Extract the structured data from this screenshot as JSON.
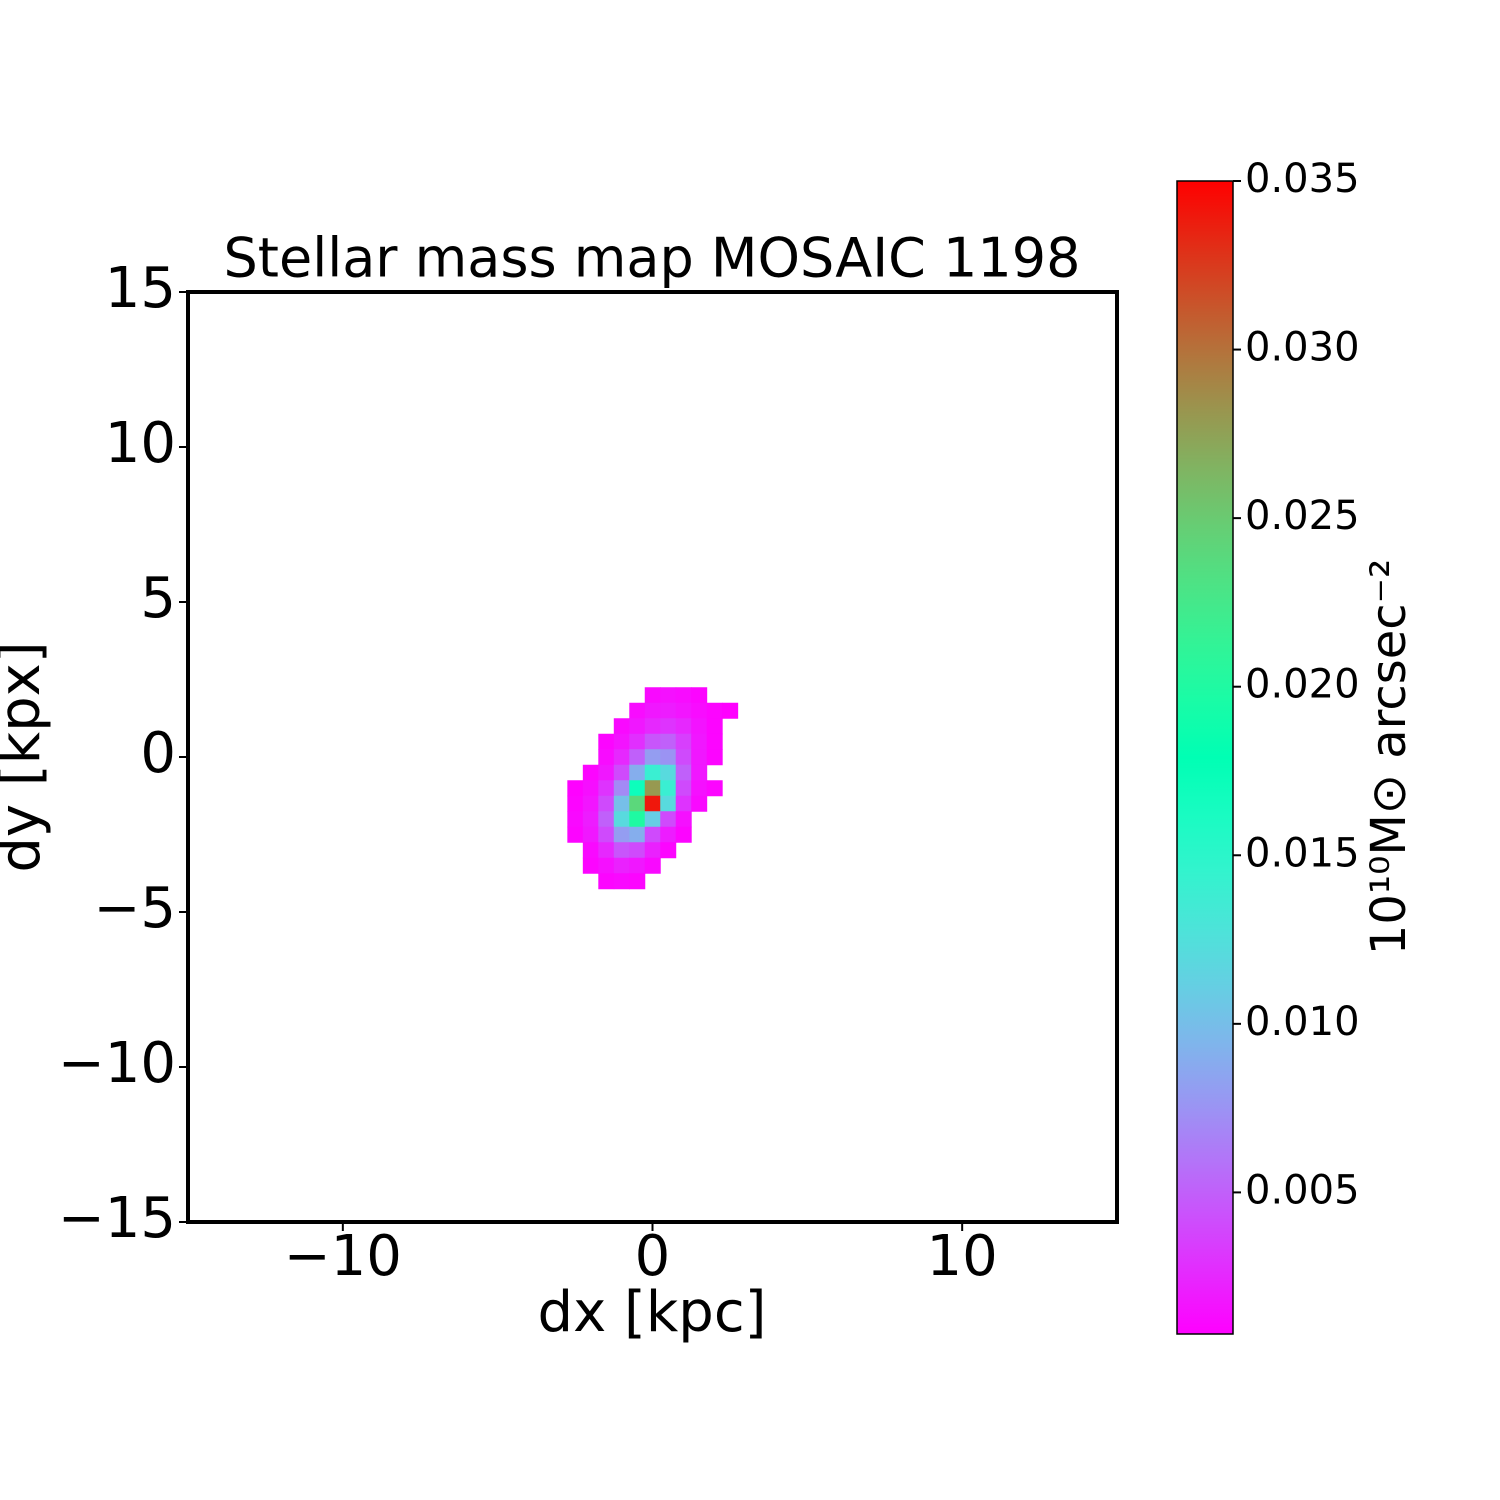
{
  "chart_data": {
    "type": "heatmap",
    "title": "Stellar mass map MOSAIC 1198",
    "x_label": "dx [kpc]",
    "y_label": "dy [kpx]",
    "colorbar_label": "10¹⁰M⊙ arcsec⁻²",
    "colormap": "rainbow",
    "xlim": [
      -15,
      15
    ],
    "ylim": [
      -15,
      15
    ],
    "xticks": [
      {
        "value": -10,
        "label": "−10"
      },
      0,
      10
    ],
    "yticks": [
      {
        "value": -15,
        "label": "−15"
      },
      {
        "value": -10,
        "label": "−10"
      },
      {
        "value": -5,
        "label": "−5"
      },
      0,
      5,
      10,
      15
    ],
    "clim": [
      0.0008,
      0.035
    ],
    "cticks": [
      0.005,
      {
        "value": 0.01,
        "label": "0.010"
      },
      0.015,
      {
        "value": 0.02,
        "label": "0.020"
      },
      0.025,
      {
        "value": 0.03,
        "label": "0.030"
      },
      0.035
    ],
    "xedges": [
      -2.75,
      -2.25,
      -1.75,
      -1.25,
      -0.75,
      -0.25,
      0.25,
      0.75,
      1.25,
      1.75,
      2.25,
      2.75
    ],
    "yedges": [
      2.25,
      1.75,
      1.25,
      0.75,
      0.25,
      -0.25,
      -0.75,
      -1.25,
      -1.75,
      -2.25,
      -2.75,
      -3.25,
      -3.75,
      -4.25
    ],
    "values": [
      [
        null,
        null,
        null,
        null,
        null,
        0.0012,
        0.0015,
        0.0013,
        0.001,
        null,
        null
      ],
      [
        null,
        null,
        null,
        null,
        0.0013,
        0.0018,
        0.002,
        0.0017,
        0.0013,
        0.001,
        0.0008
      ],
      [
        null,
        null,
        null,
        0.0012,
        0.0018,
        0.0025,
        0.003,
        0.0025,
        0.0016,
        0.001,
        null
      ],
      [
        null,
        null,
        0.001,
        0.0016,
        0.0028,
        0.0045,
        0.005,
        0.0035,
        0.0018,
        0.001,
        null
      ],
      [
        null,
        null,
        0.0013,
        0.0025,
        0.005,
        0.008,
        0.0075,
        0.004,
        0.0018,
        0.001,
        null
      ],
      [
        null,
        0.001,
        0.0018,
        0.004,
        0.009,
        0.014,
        0.012,
        0.005,
        0.0018,
        null,
        null
      ],
      [
        0.0009,
        0.0014,
        0.003,
        0.007,
        0.017,
        0.028,
        0.014,
        0.004,
        0.0015,
        0.001,
        null
      ],
      [
        0.001,
        0.0017,
        0.004,
        0.01,
        0.024,
        0.034,
        0.012,
        0.003,
        0.0012,
        null,
        null
      ],
      [
        0.0012,
        0.002,
        0.005,
        0.012,
        0.02,
        0.011,
        0.004,
        0.0015,
        null,
        null,
        null
      ],
      [
        0.001,
        0.0018,
        0.004,
        0.008,
        0.009,
        0.004,
        0.002,
        0.001,
        null,
        null,
        null
      ],
      [
        null,
        0.0012,
        0.0025,
        0.0045,
        0.004,
        0.0022,
        0.001,
        null,
        null,
        null,
        null
      ],
      [
        null,
        0.001,
        0.0015,
        0.0022,
        0.0018,
        0.0012,
        null,
        null,
        null,
        null,
        null
      ],
      [
        null,
        null,
        0.001,
        0.0012,
        0.001,
        null,
        null,
        null,
        null,
        null,
        null
      ]
    ]
  }
}
